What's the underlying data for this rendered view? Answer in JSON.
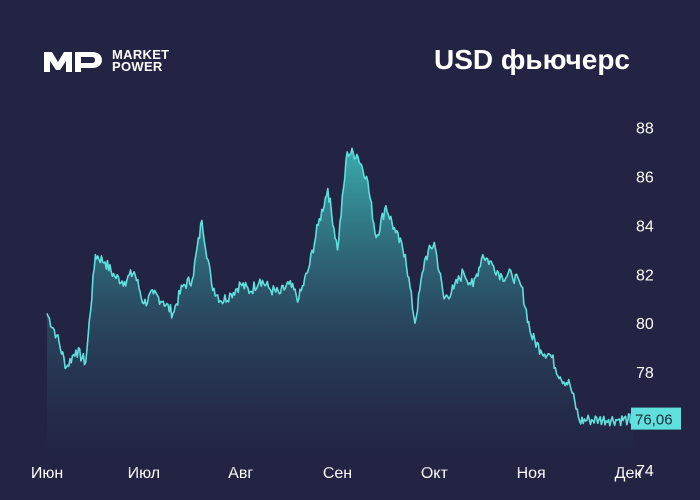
{
  "brand": {
    "line1": "MARKET",
    "line2": "POWER"
  },
  "chart_data": {
    "type": "area",
    "title": "USD фьючерс",
    "xlabel": "",
    "ylabel": "",
    "x_ticks": [
      "Июн",
      "Июл",
      "Авг",
      "Сен",
      "Окт",
      "Ноя",
      "Дек"
    ],
    "y_ticks": [
      "74",
      "76",
      "78",
      "80",
      "82",
      "84",
      "86",
      "88"
    ],
    "ylim": [
      74,
      89
    ],
    "last_value_label": "76,06",
    "last_value": 76.06,
    "colors": {
      "line": "#5fe0dc",
      "fill_top": "#3bb3b3",
      "fill_bottom": "#232343",
      "badge": "#5fe0dc"
    },
    "series": [
      {
        "x": [
          0,
          0.1,
          0.2,
          0.3,
          0.4,
          0.5,
          0.6,
          0.7,
          0.8,
          0.9,
          1.0,
          1.1,
          1.2,
          1.3,
          1.4,
          1.5,
          1.6,
          1.7,
          1.8,
          1.9,
          2.0,
          2.1,
          2.2,
          2.3,
          2.4,
          2.5,
          2.6,
          2.7,
          2.8,
          2.9,
          3.0,
          3.1,
          3.2,
          3.3,
          3.4,
          3.5,
          3.6,
          3.7,
          3.8,
          3.9,
          4.0,
          4.1,
          4.2,
          4.3,
          4.4,
          4.5,
          4.6,
          4.7,
          4.8,
          4.9,
          5.0,
          5.1,
          5.2,
          5.3,
          5.4,
          5.5,
          5.6,
          5.7,
          5.8,
          5.9,
          6.0,
          6.05
        ],
        "values": [
          80.4,
          79.5,
          78.2,
          78.9,
          78.4,
          82.8,
          82.5,
          81.9,
          81.7,
          82.1,
          80.8,
          81.2,
          80.9,
          80.4,
          81.5,
          81.8,
          84.2,
          81.6,
          80.9,
          81.2,
          81.6,
          81.3,
          81.8,
          81.4,
          81.2,
          81.6,
          81.0,
          82.2,
          84.0,
          85.5,
          83.0,
          87.0,
          86.9,
          86.0,
          83.5,
          84.8,
          83.7,
          82.8,
          80.0,
          82.6,
          83.3,
          81.0,
          81.4,
          82.1,
          81.5,
          82.8,
          82.4,
          81.9,
          82.0,
          81.5,
          79.5,
          78.9,
          78.7,
          77.8,
          77.5,
          76.0,
          76.06,
          76.06,
          76.06,
          76.06,
          76.06,
          76.06
        ]
      }
    ]
  }
}
